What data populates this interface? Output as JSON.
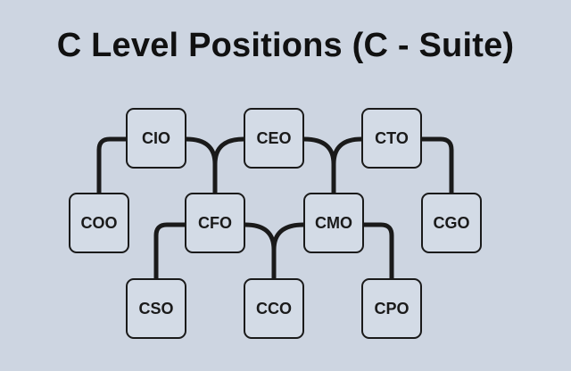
{
  "title": "C Level Positions (C - Suite)",
  "nodes": {
    "cio": "CIO",
    "ceo": "CEO",
    "cto": "CTO",
    "coo": "COO",
    "cfo": "CFO",
    "cmo": "CMO",
    "cgo": "CGO",
    "cso": "CSO",
    "cco": "CCO",
    "cpo": "CPO"
  },
  "colors": {
    "background": "#cdd5e1",
    "node_fill": "#d3dbe6",
    "stroke": "#1a1a1a"
  }
}
